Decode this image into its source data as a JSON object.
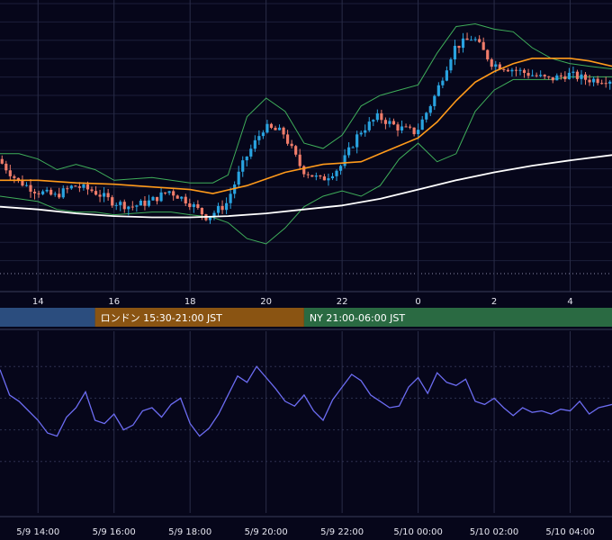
{
  "chart_data": {
    "type": "candlestick",
    "x_ticks_top": [
      {
        "t": 14,
        "label": "14"
      },
      {
        "t": 16,
        "label": "16"
      },
      {
        "t": 18,
        "label": "18"
      },
      {
        "t": 20,
        "label": "20"
      },
      {
        "t": 22,
        "label": "22"
      },
      {
        "t": 24,
        "label": "0"
      },
      {
        "t": 26,
        "label": "2"
      },
      {
        "t": 28,
        "label": "4"
      }
    ],
    "x_ticks_bottom": [
      {
        "t": 14,
        "label": "5/9 14:00"
      },
      {
        "t": 16,
        "label": "5/9 16:00"
      },
      {
        "t": 18,
        "label": "5/9 18:00"
      },
      {
        "t": 20,
        "label": "5/9 20:00"
      },
      {
        "t": 22,
        "label": "5/9 22:00"
      },
      {
        "t": 24,
        "label": "5/10 00:00"
      },
      {
        "t": 26,
        "label": "5/10 02:00"
      },
      {
        "t": 28,
        "label": "5/10 04:00"
      }
    ],
    "sessions": [
      {
        "name": "",
        "start": 13.0,
        "end": 15.5,
        "color": "#2b4d7e"
      },
      {
        "name": "ロンドン 15:30-21:00 JST",
        "start": 15.5,
        "end": 21.0,
        "color": "#8a5412"
      },
      {
        "name": "NY 21:00-06:00 JST",
        "start": 21.0,
        "end": 29.1,
        "color": "#2a6a42"
      }
    ],
    "series": [
      {
        "key": "price",
        "t": [
          13.0,
          13.5,
          14.0,
          14.5,
          15.0,
          15.5,
          16.0,
          16.5,
          17.0,
          17.5,
          18.0,
          18.5,
          19.0,
          19.5,
          20.0,
          20.5,
          21.0,
          21.5,
          22.0,
          22.5,
          23.0,
          23.5,
          24.0,
          24.5,
          25.0,
          25.5,
          26.0,
          26.5,
          27.0,
          27.5,
          28.0,
          28.5,
          29.1
        ],
        "v": [
          50,
          42,
          38,
          36,
          40,
          38,
          34,
          32,
          34,
          38,
          34,
          28,
          33,
          50,
          62,
          60,
          46,
          42,
          47,
          60,
          66,
          62,
          60,
          74,
          92,
          96,
          86,
          84,
          82,
          80,
          82,
          80,
          80
        ]
      },
      {
        "key": "ema_fast",
        "color": "#ff9a1a",
        "t": [
          13.0,
          14.0,
          15.0,
          16.0,
          17.0,
          18.0,
          18.6,
          19.5,
          20.5,
          21.5,
          22.5,
          23.0,
          23.5,
          24.0,
          24.5,
          25.0,
          25.5,
          26.0,
          26.5,
          27.0,
          27.5,
          28.0,
          28.5,
          29.1
        ],
        "v": [
          42,
          42,
          41,
          40.5,
          39.5,
          38.5,
          37,
          40,
          45,
          48,
          49,
          52,
          55,
          58,
          64,
          72,
          79,
          83,
          86,
          88,
          88,
          88,
          87,
          85
        ]
      },
      {
        "key": "ma_slow",
        "color": "#ffffff",
        "t": [
          13.0,
          14.0,
          15.0,
          16.0,
          17.0,
          18.0,
          19.0,
          20.0,
          21.0,
          22.0,
          23.0,
          24.0,
          25.0,
          26.0,
          27.0,
          28.0,
          29.1
        ],
        "v": [
          32,
          31,
          29.5,
          28.5,
          28,
          28,
          28.5,
          29.5,
          31,
          32.5,
          35,
          38.5,
          42,
          45,
          47.5,
          49.5,
          51.5
        ]
      },
      {
        "key": "bb_upper",
        "color": "#3fae5a",
        "t": [
          13.0,
          13.5,
          14.0,
          14.5,
          15.0,
          15.5,
          16.0,
          17.0,
          17.5,
          18.0,
          18.6,
          19.0,
          19.5,
          20.0,
          20.5,
          21.0,
          21.5,
          22.0,
          22.5,
          23.0,
          23.5,
          24.0,
          24.5,
          25.0,
          25.5,
          26.0,
          26.5,
          27.0,
          27.5,
          28.0,
          28.5,
          29.1
        ],
        "v": [
          52,
          52,
          50,
          46,
          48,
          46,
          42,
          43,
          42,
          41,
          41,
          44,
          66,
          73,
          68,
          56,
          54,
          59,
          70,
          74,
          76,
          78,
          90,
          100,
          101,
          99,
          98,
          92,
          88,
          86,
          85,
          84
        ]
      },
      {
        "key": "bb_lower",
        "color": "#3fae5a",
        "t": [
          13.0,
          13.5,
          14.0,
          14.5,
          15.0,
          15.5,
          16.0,
          17.0,
          17.5,
          18.0,
          18.6,
          19.0,
          19.5,
          20.0,
          20.5,
          21.0,
          21.5,
          22.0,
          22.5,
          23.0,
          23.5,
          24.0,
          24.5,
          25.0,
          25.5,
          26.0,
          26.5,
          27.0,
          27.5,
          28.0,
          28.5,
          29.1
        ],
        "v": [
          36,
          35,
          34,
          31,
          30,
          30,
          29,
          30,
          30,
          29,
          28,
          26,
          20,
          18,
          24,
          32,
          36,
          38,
          36,
          40,
          50,
          56,
          49,
          52,
          68,
          76,
          80,
          80,
          80,
          81,
          81,
          81
        ]
      },
      {
        "key": "rsi",
        "color": "#6c6cf2",
        "t": [
          13.0,
          13.25,
          13.5,
          13.75,
          14.0,
          14.25,
          14.5,
          14.75,
          15.0,
          15.25,
          15.5,
          15.75,
          16.0,
          16.25,
          16.5,
          16.75,
          17.0,
          17.25,
          17.5,
          17.75,
          18.0,
          18.25,
          18.5,
          18.75,
          19.0,
          19.25,
          19.5,
          19.75,
          20.0,
          20.25,
          20.5,
          20.75,
          21.0,
          21.25,
          21.5,
          21.75,
          22.0,
          22.25,
          22.5,
          22.75,
          23.0,
          23.25,
          23.5,
          23.75,
          24.0,
          24.25,
          24.5,
          24.75,
          25.0,
          25.25,
          25.5,
          25.75,
          26.0,
          26.25,
          26.5,
          26.75,
          27.0,
          27.25,
          27.5,
          27.75,
          28.0,
          28.25,
          28.5,
          28.75,
          29.1
        ],
        "v": [
          78,
          62,
          58,
          52,
          46,
          38,
          36,
          48,
          54,
          64,
          46,
          44,
          50,
          40,
          43,
          52,
          54,
          48,
          56,
          60,
          44,
          36,
          41,
          50,
          62,
          74,
          70,
          80,
          73,
          66,
          58,
          55,
          62,
          52,
          46,
          59,
          67,
          75,
          71,
          62,
          58,
          54,
          55,
          67,
          73,
          63,
          76,
          70,
          68,
          72,
          58,
          56,
          60,
          54,
          49,
          54,
          51,
          52,
          50,
          53,
          52,
          58,
          50,
          54,
          56
        ]
      }
    ]
  }
}
